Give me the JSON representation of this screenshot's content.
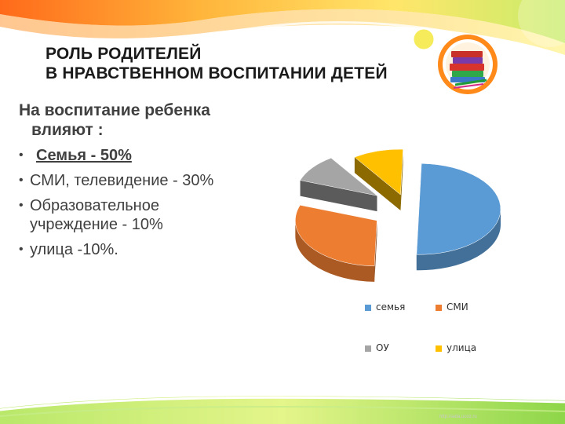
{
  "slide": {
    "title_lines": [
      "РОЛЬ РОДИТЕЛЕЙ",
      "В НРАВСТВЕННОМ ВОСПИТАНИИ ДЕТЕЙ"
    ],
    "intro_lines": [
      "На воспитание ребенка",
      "влияют :"
    ],
    "bullets": [
      {
        "lines": [
          "Семья - 50%"
        ]
      },
      {
        "lines": [
          "СМИ, телевидение  - 30%"
        ]
      },
      {
        "lines": [
          "Образовательное",
          "учреждение - 10%"
        ]
      },
      {
        "lines": [
          "улица -10%."
        ]
      }
    ],
    "footer_url": "http://aida.ucoz.ru"
  },
  "colors": {
    "blue": "#5b9bd5",
    "orange": "#ed7d31",
    "gray": "#a5a5a5",
    "yellow": "#ffc000"
  },
  "chart_data": {
    "type": "pie",
    "style": "3d-exploded",
    "title": "",
    "categories": [
      "семья",
      "СМИ",
      "ОУ",
      "улица"
    ],
    "values": [
      50,
      30,
      10,
      10
    ],
    "legend_position": "bottom"
  }
}
